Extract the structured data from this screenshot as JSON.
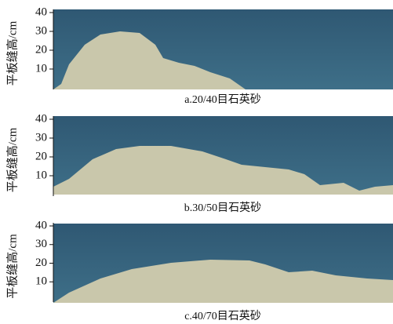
{
  "panels": [
    {
      "ylabel": "平板缝高/cm",
      "ylim": [
        0,
        40
      ],
      "yticks": [
        10,
        20,
        30,
        40
      ],
      "caption": "a.20/40目石英砂"
    },
    {
      "ylabel": "平板缝高/cm",
      "ylim": [
        0,
        40
      ],
      "yticks": [
        10,
        20,
        30,
        40
      ],
      "caption": "b.30/50目石英砂"
    },
    {
      "ylabel": "平板缝高/cm",
      "ylim": [
        0,
        40
      ],
      "yticks": [
        10,
        20,
        30,
        40
      ],
      "caption": "c.40/70目石英砂"
    }
  ]
}
